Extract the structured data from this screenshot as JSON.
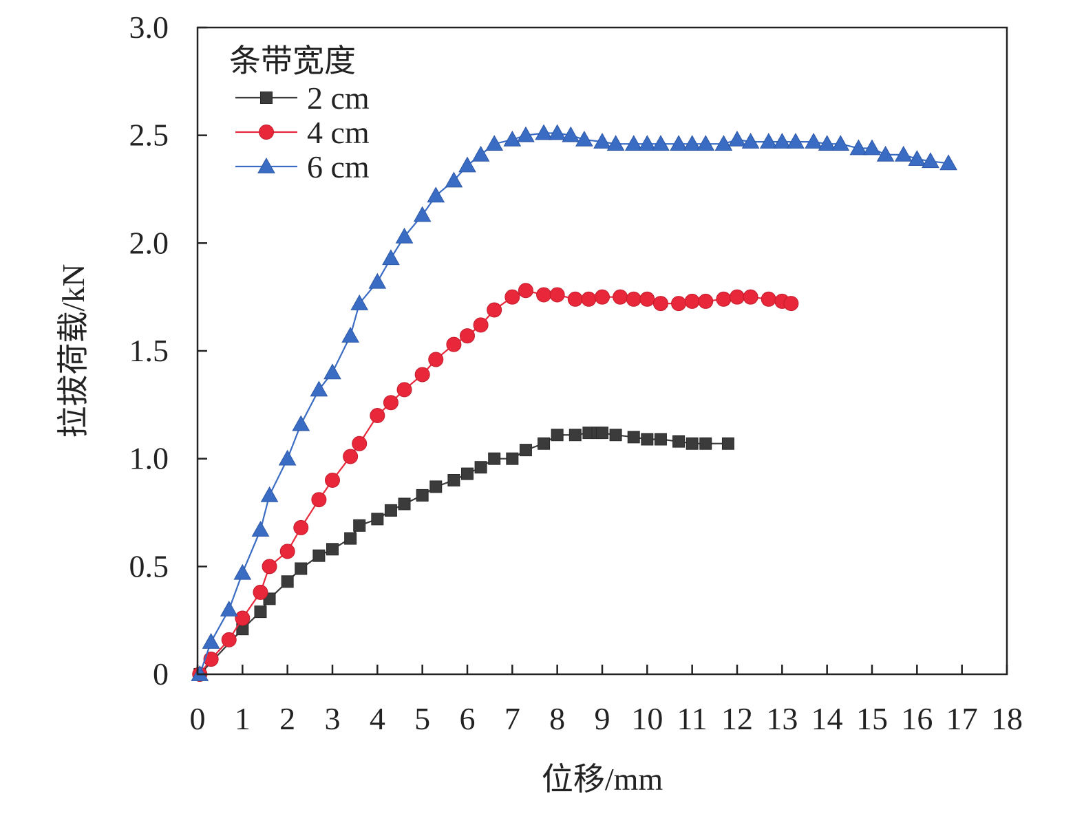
{
  "chart_data": {
    "type": "line",
    "title": "",
    "xlabel": "位移/mm",
    "ylabel": "拉拔荷载/kN",
    "xlim": [
      0,
      18
    ],
    "ylim": [
      0,
      3.0
    ],
    "x_ticks": [
      "0",
      "1",
      "2",
      "3",
      "4",
      "5",
      "6",
      "7",
      "8",
      "9",
      "10",
      "11",
      "12",
      "13",
      "14",
      "15",
      "16",
      "17",
      "18"
    ],
    "y_ticks": [
      "0",
      "0.5",
      "1.0",
      "1.5",
      "2.0",
      "2.5",
      "3.0"
    ],
    "grid": false,
    "legend": {
      "title": "条带宽度",
      "position": "top-left"
    },
    "series": [
      {
        "name": "2 cm",
        "color": "#3b3b3b",
        "marker": "square",
        "points": [
          [
            0.05,
            0.0
          ],
          [
            1.0,
            0.21
          ],
          [
            1.4,
            0.29
          ],
          [
            1.6,
            0.35
          ],
          [
            2.0,
            0.43
          ],
          [
            2.3,
            0.49
          ],
          [
            2.7,
            0.55
          ],
          [
            3.0,
            0.58
          ],
          [
            3.4,
            0.63
          ],
          [
            3.6,
            0.69
          ],
          [
            4.0,
            0.72
          ],
          [
            4.3,
            0.76
          ],
          [
            4.6,
            0.79
          ],
          [
            5.0,
            0.83
          ],
          [
            5.3,
            0.87
          ],
          [
            5.7,
            0.9
          ],
          [
            6.0,
            0.93
          ],
          [
            6.3,
            0.96
          ],
          [
            6.6,
            1.0
          ],
          [
            7.0,
            1.0
          ],
          [
            7.3,
            1.04
          ],
          [
            7.7,
            1.07
          ],
          [
            8.0,
            1.11
          ],
          [
            8.4,
            1.11
          ],
          [
            8.7,
            1.12
          ],
          [
            8.9,
            1.12
          ],
          [
            9.0,
            1.12
          ],
          [
            9.3,
            1.11
          ],
          [
            9.7,
            1.1
          ],
          [
            10.0,
            1.09
          ],
          [
            10.3,
            1.09
          ],
          [
            10.7,
            1.08
          ],
          [
            11.0,
            1.07
          ],
          [
            11.3,
            1.07
          ],
          [
            11.8,
            1.07
          ]
        ]
      },
      {
        "name": "4 cm",
        "color": "#e8283a",
        "marker": "circle",
        "points": [
          [
            0.05,
            0.0
          ],
          [
            0.3,
            0.07
          ],
          [
            0.7,
            0.16
          ],
          [
            1.0,
            0.26
          ],
          [
            1.4,
            0.38
          ],
          [
            1.6,
            0.5
          ],
          [
            2.0,
            0.57
          ],
          [
            2.3,
            0.68
          ],
          [
            2.7,
            0.81
          ],
          [
            3.0,
            0.9
          ],
          [
            3.4,
            1.01
          ],
          [
            3.6,
            1.07
          ],
          [
            4.0,
            1.2
          ],
          [
            4.3,
            1.26
          ],
          [
            4.6,
            1.32
          ],
          [
            5.0,
            1.39
          ],
          [
            5.3,
            1.46
          ],
          [
            5.7,
            1.53
          ],
          [
            6.0,
            1.57
          ],
          [
            6.3,
            1.62
          ],
          [
            6.6,
            1.69
          ],
          [
            7.0,
            1.75
          ],
          [
            7.3,
            1.78
          ],
          [
            7.7,
            1.76
          ],
          [
            8.0,
            1.76
          ],
          [
            8.4,
            1.74
          ],
          [
            8.7,
            1.74
          ],
          [
            9.0,
            1.75
          ],
          [
            9.4,
            1.75
          ],
          [
            9.7,
            1.74
          ],
          [
            10.0,
            1.74
          ],
          [
            10.3,
            1.72
          ],
          [
            10.7,
            1.72
          ],
          [
            11.0,
            1.73
          ],
          [
            11.3,
            1.73
          ],
          [
            11.7,
            1.74
          ],
          [
            12.0,
            1.75
          ],
          [
            12.3,
            1.75
          ],
          [
            12.7,
            1.74
          ],
          [
            13.0,
            1.73
          ],
          [
            13.2,
            1.72
          ]
        ]
      },
      {
        "name": "6 cm",
        "color": "#3a6cc4",
        "marker": "triangle",
        "points": [
          [
            0.05,
            0.0
          ],
          [
            0.3,
            0.15
          ],
          [
            0.7,
            0.3
          ],
          [
            1.0,
            0.47
          ],
          [
            1.4,
            0.67
          ],
          [
            1.6,
            0.83
          ],
          [
            2.0,
            1.0
          ],
          [
            2.3,
            1.16
          ],
          [
            2.7,
            1.32
          ],
          [
            3.0,
            1.4
          ],
          [
            3.4,
            1.57
          ],
          [
            3.6,
            1.72
          ],
          [
            4.0,
            1.82
          ],
          [
            4.3,
            1.93
          ],
          [
            4.6,
            2.03
          ],
          [
            5.0,
            2.13
          ],
          [
            5.3,
            2.22
          ],
          [
            5.7,
            2.29
          ],
          [
            6.0,
            2.36
          ],
          [
            6.3,
            2.41
          ],
          [
            6.6,
            2.46
          ],
          [
            7.0,
            2.48
          ],
          [
            7.3,
            2.5
          ],
          [
            7.7,
            2.51
          ],
          [
            8.0,
            2.51
          ],
          [
            8.3,
            2.5
          ],
          [
            8.6,
            2.48
          ],
          [
            9.0,
            2.47
          ],
          [
            9.3,
            2.46
          ],
          [
            9.7,
            2.46
          ],
          [
            10.0,
            2.46
          ],
          [
            10.3,
            2.46
          ],
          [
            10.7,
            2.46
          ],
          [
            11.0,
            2.46
          ],
          [
            11.3,
            2.46
          ],
          [
            11.7,
            2.46
          ],
          [
            12.0,
            2.48
          ],
          [
            12.3,
            2.47
          ],
          [
            12.7,
            2.47
          ],
          [
            13.0,
            2.47
          ],
          [
            13.3,
            2.47
          ],
          [
            13.7,
            2.47
          ],
          [
            14.0,
            2.46
          ],
          [
            14.3,
            2.46
          ],
          [
            14.7,
            2.44
          ],
          [
            15.0,
            2.44
          ],
          [
            15.3,
            2.41
          ],
          [
            15.7,
            2.41
          ],
          [
            16.0,
            2.39
          ],
          [
            16.3,
            2.38
          ],
          [
            16.7,
            2.37
          ]
        ]
      }
    ]
  }
}
